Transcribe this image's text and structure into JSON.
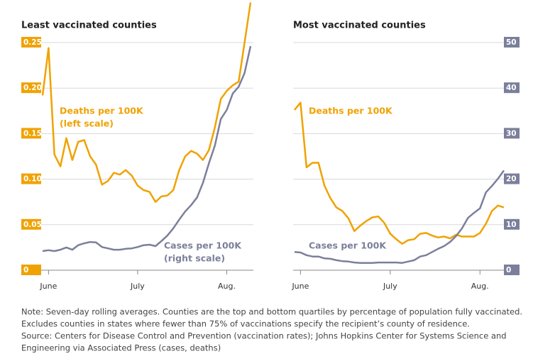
{
  "chart_data": [
    {
      "type": "line",
      "title": "Least vaccinated counties",
      "categories": [
        null,
        "June",
        null,
        null,
        null,
        null,
        null,
        null,
        null,
        null,
        null,
        null,
        null,
        null,
        null,
        null,
        "July",
        null,
        null,
        null,
        null,
        null,
        null,
        null,
        null,
        null,
        null,
        null,
        null,
        null,
        null,
        "Aug.",
        null,
        null,
        null,
        null
      ],
      "ylim": [
        0,
        0.25
      ],
      "yticks": [
        0,
        0.05,
        {
          "value": 0.1,
          "label": "0.10"
        },
        0.15,
        {
          "value": 0.2,
          "label": "0.20"
        },
        0.25
      ],
      "y2lim": [
        0,
        50
      ],
      "grid": true,
      "series": [
        {
          "name": "Deaths per 100K",
          "scale_note": "(left scale)",
          "color": "#f0a202",
          "values": [
            0.192,
            0.244,
            0.127,
            0.114,
            0.145,
            0.121,
            0.141,
            0.143,
            0.125,
            0.116,
            0.094,
            0.098,
            0.107,
            0.105,
            0.11,
            0.104,
            0.093,
            0.088,
            0.086,
            0.075,
            0.081,
            0.082,
            0.088,
            0.11,
            0.125,
            0.131,
            0.128,
            0.121,
            0.132,
            0.157,
            0.188,
            0.197,
            0.203,
            0.207,
            0.25,
            0.294
          ]
        },
        {
          "name": "Cases per 100K",
          "scale_note": "(right scale)",
          "color": "#7b7f9b",
          "axis": "y2",
          "values": [
            4.2,
            4.4,
            4.2,
            4.5,
            5.0,
            4.5,
            5.5,
            5.9,
            6.2,
            6.1,
            5.1,
            4.8,
            4.5,
            4.5,
            4.7,
            4.8,
            5.1,
            5.5,
            5.6,
            5.3,
            6.4,
            7.6,
            9.2,
            11.1,
            12.9,
            14.3,
            16.0,
            19.2,
            23.5,
            27.4,
            33.2,
            35.2,
            38.8,
            40.3,
            43.3,
            49.2
          ]
        }
      ]
    },
    {
      "type": "line",
      "title": "Most vaccinated counties",
      "categories": [
        null,
        "June",
        null,
        null,
        null,
        null,
        null,
        null,
        null,
        null,
        null,
        null,
        null,
        null,
        null,
        null,
        "July",
        null,
        null,
        null,
        null,
        null,
        null,
        null,
        null,
        null,
        null,
        null,
        null,
        null,
        null,
        "Aug.",
        null,
        null,
        null,
        null
      ],
      "ylim": [
        0,
        0.25
      ],
      "y2lim": [
        0,
        50
      ],
      "y2ticks": [
        0,
        10,
        20,
        30,
        40,
        50
      ],
      "grid": true,
      "series": [
        {
          "name": "Deaths per 100K",
          "color": "#f0a202",
          "values": [
            0.176,
            0.184,
            0.113,
            0.118,
            0.118,
            0.093,
            0.079,
            0.069,
            0.065,
            0.057,
            0.043,
            0.049,
            0.054,
            0.058,
            0.059,
            0.052,
            0.04,
            0.034,
            0.029,
            0.033,
            0.034,
            0.04,
            0.041,
            0.038,
            0.036,
            0.037,
            0.035,
            0.039,
            0.037,
            0.037,
            0.037,
            0.041,
            0.051,
            0.065,
            0.071,
            0.069
          ]
        },
        {
          "name": "Cases per 100K",
          "color": "#7b7f9b",
          "axis": "y2",
          "values": [
            4.0,
            3.9,
            3.3,
            3.0,
            3.0,
            2.6,
            2.5,
            2.2,
            2.0,
            1.9,
            1.7,
            1.6,
            1.6,
            1.6,
            1.7,
            1.7,
            1.7,
            1.7,
            1.6,
            1.9,
            2.2,
            3.0,
            3.3,
            4.0,
            4.7,
            5.3,
            6.2,
            7.5,
            9.2,
            11.5,
            12.6,
            13.6,
            17.1,
            18.5,
            20.1,
            21.9
          ]
        }
      ]
    }
  ],
  "notes": [
    "Note: Seven-day rolling averages. Counties are the top and bottom quartiles by percentage of population fully vaccinated.",
    "Excludes counties in states where fewer than 75% of vaccinations specify the recipient’s county of residence.",
    "Source: Centers for Disease Control and Prevention (vaccination rates); Johns Hopkins Center for Systems Science and",
    "Engineering via Associated Press (cases, deaths)"
  ]
}
